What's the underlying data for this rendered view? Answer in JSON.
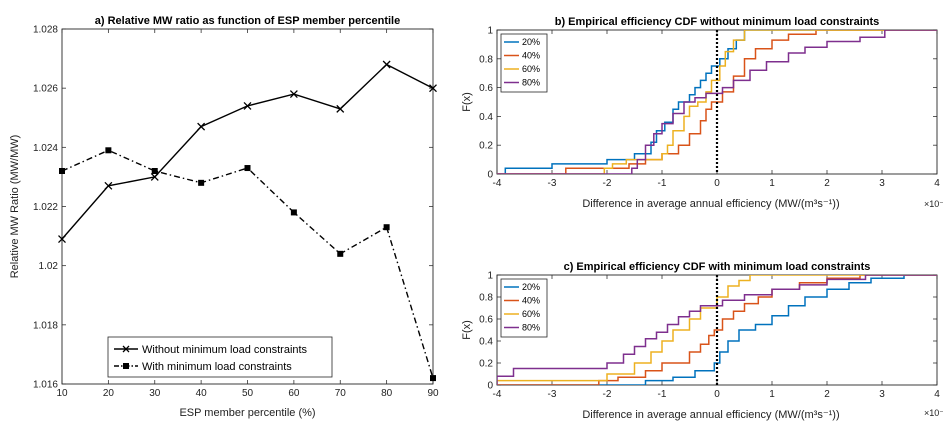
{
  "chart_data": [
    {
      "type": "line",
      "title": "a) Relative MW ratio as function of ESP member percentile",
      "xlabel": "ESP member percentile (%)",
      "ylabel": "Relative MW Ratio (MW/MW)",
      "x": [
        10,
        20,
        30,
        40,
        50,
        60,
        70,
        80,
        90
      ],
      "xlim": [
        10,
        90
      ],
      "ylim": [
        1.016,
        1.028
      ],
      "xticks": [
        "10",
        "20",
        "30",
        "40",
        "50",
        "60",
        "70",
        "80",
        "90"
      ],
      "yticks": [
        "1.016",
        "1.018",
        "1.02",
        "1.022",
        "1.024",
        "1.026",
        "1.028"
      ],
      "legend_position": "bottom-center",
      "series": [
        {
          "name": "Without minimum load constraints",
          "values": [
            1.0209,
            1.0227,
            1.023,
            1.0247,
            1.0254,
            1.0258,
            1.0253,
            1.0268,
            1.026
          ],
          "color": "#000000",
          "marker": "x",
          "style": "solid"
        },
        {
          "name": "With minimum load constraints",
          "values": [
            1.0232,
            1.0239,
            1.0232,
            1.0228,
            1.0233,
            1.0218,
            1.0204,
            1.0213,
            1.0162
          ],
          "color": "#000000",
          "marker": "square",
          "style": "dashdot"
        }
      ]
    },
    {
      "type": "line",
      "title": "b) Empirical efficiency CDF without minimum load constraints",
      "xlabel": "Difference in average annual efficiency (MW/(m³s⁻¹))",
      "xmult": "×10⁻³",
      "ylabel": "F(x)",
      "xlim": [
        -4,
        4
      ],
      "ylim": [
        0,
        1
      ],
      "xticks": [
        "-4",
        "-3",
        "-2",
        "-1",
        "0",
        "1",
        "2",
        "3",
        "4"
      ],
      "yticks": [
        "0",
        "0.2",
        "0.4",
        "0.6",
        "0.8",
        "1"
      ],
      "legend_position": "top-left",
      "series": [
        {
          "name": "20%",
          "color": "#0072BD",
          "x": [
            -3.85,
            -3.0,
            -2.0,
            -1.5,
            -1.2,
            -1.1,
            -0.95,
            -0.8,
            -0.7,
            -0.5,
            -0.4,
            -0.3,
            -0.2,
            -0.1,
            0.05,
            0.2,
            0.35,
            0.5
          ],
          "y": [
            0.04,
            0.07,
            0.1,
            0.14,
            0.22,
            0.3,
            0.36,
            0.45,
            0.5,
            0.55,
            0.6,
            0.65,
            0.7,
            0.75,
            0.8,
            0.87,
            0.93,
            1.0
          ]
        },
        {
          "name": "40%",
          "color": "#D95319",
          "x": [
            -2.75,
            -1.6,
            -1.3,
            -1.0,
            -0.7,
            -0.5,
            -0.3,
            -0.2,
            -0.1,
            0.1,
            0.3,
            0.5,
            0.7,
            1.0,
            1.3,
            1.8
          ],
          "y": [
            0.04,
            0.07,
            0.1,
            0.14,
            0.2,
            0.28,
            0.37,
            0.45,
            0.5,
            0.57,
            0.68,
            0.8,
            0.87,
            0.93,
            0.97,
            1.0
          ]
        },
        {
          "name": "60%",
          "color": "#EDB120",
          "x": [
            -2.05,
            -1.9,
            -1.65,
            -1.0,
            -0.9,
            -0.8,
            -0.6,
            -0.5,
            -0.35,
            -0.2,
            -0.1,
            0.05,
            0.15,
            0.3,
            0.5
          ],
          "y": [
            0.04,
            0.07,
            0.1,
            0.14,
            0.2,
            0.3,
            0.4,
            0.47,
            0.5,
            0.57,
            0.65,
            0.75,
            0.85,
            0.93,
            1.0
          ]
        },
        {
          "name": "80%",
          "color": "#7E2F8E",
          "x": [
            -1.55,
            -1.45,
            -1.3,
            -1.15,
            -1.0,
            -0.8,
            -0.6,
            -0.4,
            -0.2,
            0.1,
            0.3,
            0.6,
            0.9,
            1.3,
            1.6,
            2.0,
            2.6,
            3.05
          ],
          "y": [
            0.04,
            0.1,
            0.2,
            0.28,
            0.35,
            0.42,
            0.5,
            0.53,
            0.56,
            0.6,
            0.65,
            0.72,
            0.78,
            0.84,
            0.88,
            0.92,
            0.95,
            1.0
          ]
        }
      ]
    },
    {
      "type": "line",
      "title": "c) Empirical efficiency CDF with minimum load constraints",
      "xlabel": "Difference in average annual efficiency (MW/(m³s⁻¹))",
      "xmult": "×10⁻³",
      "ylabel": "F(x)",
      "xlim": [
        -4,
        4
      ],
      "ylim": [
        0,
        1
      ],
      "xticks": [
        "-4",
        "-3",
        "-2",
        "-1",
        "0",
        "1",
        "2",
        "3",
        "4"
      ],
      "yticks": [
        "0",
        "0.2",
        "0.4",
        "0.6",
        "0.8",
        "1"
      ],
      "legend_position": "top-left",
      "series": [
        {
          "name": "20%",
          "color": "#0072BD",
          "x": [
            -1.3,
            -0.8,
            -0.4,
            -0.05,
            0.05,
            0.2,
            0.4,
            0.7,
            1.0,
            1.3,
            1.6,
            2.0,
            2.4,
            2.8,
            3.4
          ],
          "y": [
            0.04,
            0.07,
            0.13,
            0.2,
            0.3,
            0.4,
            0.5,
            0.55,
            0.63,
            0.72,
            0.8,
            0.87,
            0.93,
            0.97,
            1.0
          ]
        },
        {
          "name": "40%",
          "color": "#D95319",
          "x": [
            -2.15,
            -1.8,
            -1.3,
            -1.0,
            -0.5,
            -0.3,
            -0.15,
            -0.05,
            0.1,
            0.3,
            0.5,
            0.75,
            1.0,
            1.5,
            2.0,
            2.6
          ],
          "y": [
            0.04,
            0.07,
            0.13,
            0.2,
            0.3,
            0.37,
            0.45,
            0.5,
            0.6,
            0.67,
            0.74,
            0.8,
            0.87,
            0.93,
            0.97,
            1.0
          ]
        },
        {
          "name": "60%",
          "color": "#EDB120",
          "x": [
            -4.0,
            -2.0,
            -1.5,
            -1.2,
            -1.0,
            -0.8,
            -0.5,
            -0.3,
            0.0,
            0.2,
            0.4,
            0.6
          ],
          "y": [
            0.04,
            0.1,
            0.2,
            0.3,
            0.4,
            0.5,
            0.6,
            0.7,
            0.8,
            0.9,
            0.95,
            1.0
          ]
        },
        {
          "name": "80%",
          "color": "#7E2F8E",
          "x": [
            -4.0,
            -3.7,
            -2.0,
            -1.7,
            -1.5,
            -1.3,
            -1.1,
            -0.9,
            -0.7,
            -0.5,
            -0.3,
            0.1,
            0.5,
            1.0,
            1.5,
            2.0,
            2.7
          ],
          "y": [
            0.08,
            0.15,
            0.2,
            0.28,
            0.35,
            0.42,
            0.48,
            0.55,
            0.62,
            0.67,
            0.72,
            0.77,
            0.82,
            0.87,
            0.91,
            0.96,
            1.0
          ]
        }
      ]
    }
  ]
}
